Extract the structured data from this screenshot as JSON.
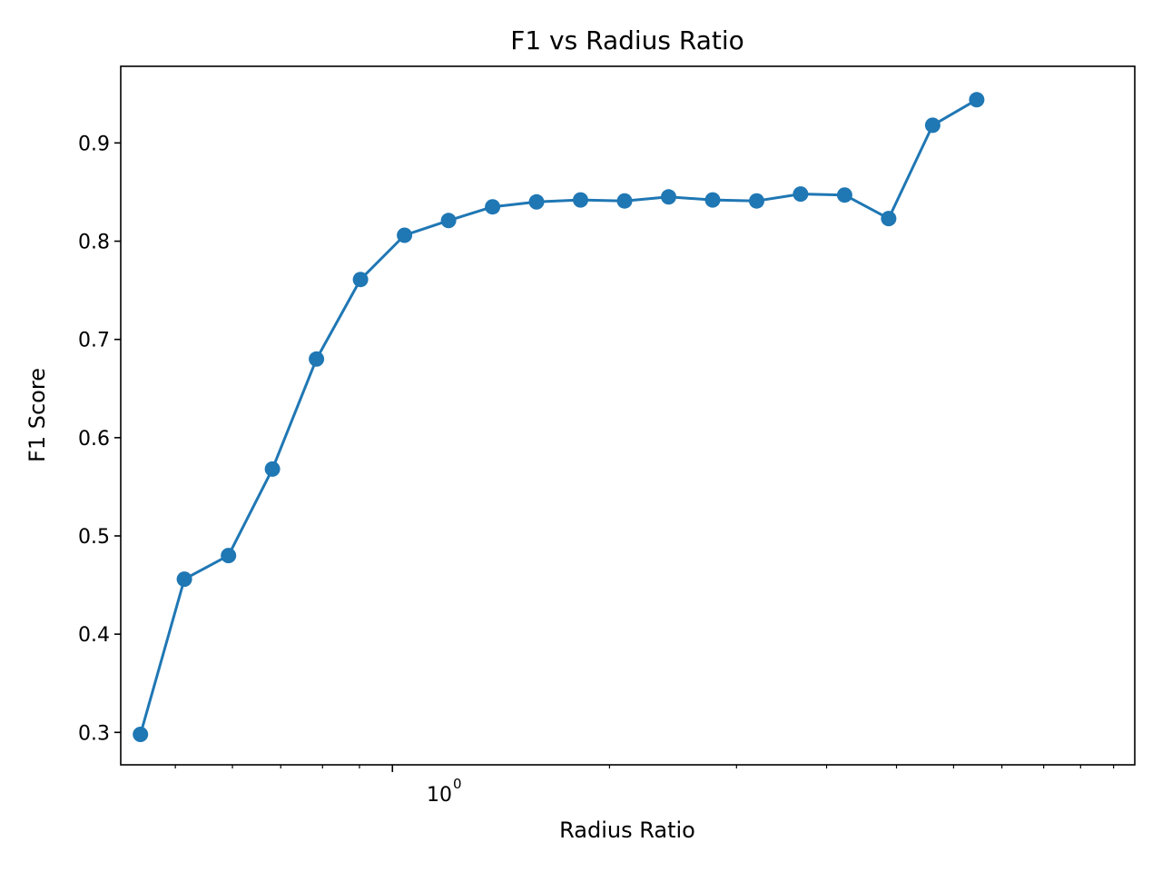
{
  "chart_data": {
    "type": "line",
    "title": "F1 vs Radius Ratio",
    "xlabel": "Radius Ratio",
    "ylabel": "F1 Score",
    "xscale": "log",
    "x_tick_label_major": "10",
    "x_tick_label_exponent": "0",
    "y_ticks": [
      "0.3",
      "0.4",
      "0.5",
      "0.6",
      "0.7",
      "0.8",
      "0.9"
    ],
    "ylim": [
      0.267,
      0.978
    ],
    "xlim": [
      0.42,
      10.7
    ],
    "grid": false,
    "legend": "none",
    "colors": {
      "line": "#1f77b4",
      "marker": "#1f77b4",
      "frame": "#000000"
    },
    "series": [
      {
        "x": [
          0.4473,
          0.5147,
          0.5924,
          0.6818,
          0.7847,
          0.9031,
          1.0394,
          1.1962,
          1.3767,
          1.5844,
          1.8235,
          2.0986,
          2.4152,
          2.7796,
          3.199,
          3.6817,
          4.2372,
          4.8765,
          5.6122,
          6.459
        ],
        "values": [
          0.298,
          0.456,
          0.48,
          0.568,
          0.68,
          0.761,
          0.806,
          0.821,
          0.835,
          0.84,
          0.842,
          0.841,
          0.845,
          0.842,
          0.841,
          0.848,
          0.847,
          0.823,
          0.918,
          0.944
        ]
      }
    ]
  }
}
